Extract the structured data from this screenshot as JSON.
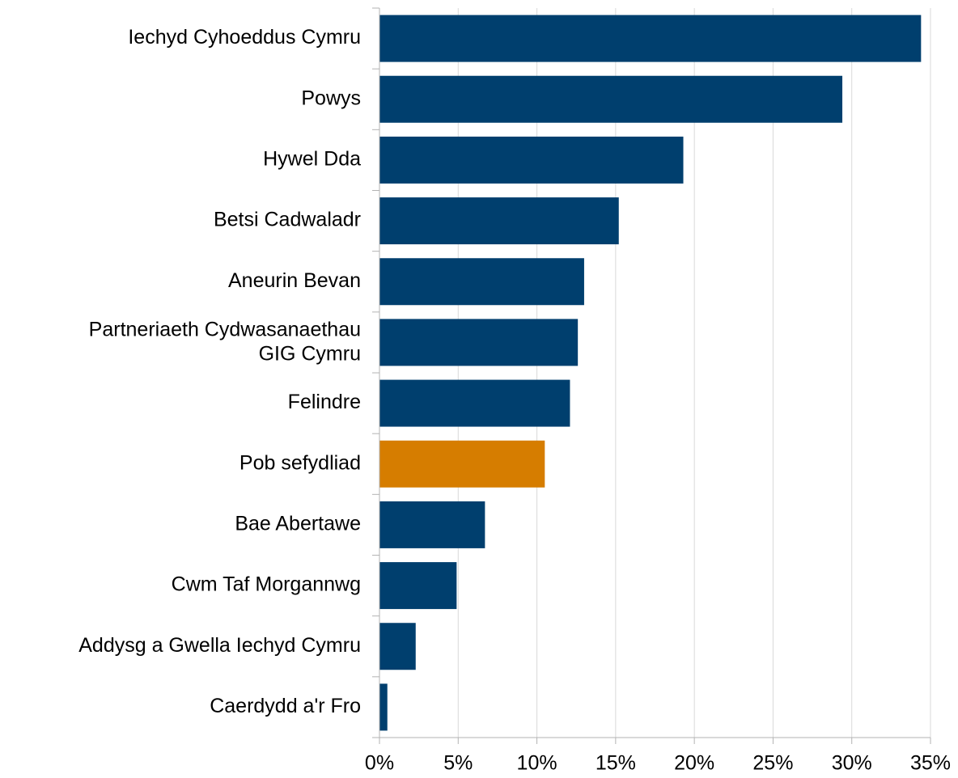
{
  "chart_data": {
    "type": "barh",
    "categories": [
      "Iechyd Cyhoeddus Cymru",
      "Powys",
      "Hywel Dda",
      "Betsi Cadwaladr",
      "Aneurin Bevan",
      "Partneriaeth Cydwasanaethau\nGIG Cymru",
      "Felindre",
      "Pob sefydliad",
      "Bae Abertawe",
      "Cwm Taf Morgannwg",
      "Addysg a Gwella Iechyd Cymru",
      "Caerdydd a'r Fro"
    ],
    "values": [
      34.4,
      29.4,
      19.3,
      15.2,
      13.0,
      12.6,
      12.1,
      10.5,
      6.7,
      4.9,
      2.3,
      0.5
    ],
    "colors": [
      "#003f6e",
      "#003f6e",
      "#003f6e",
      "#003f6e",
      "#003f6e",
      "#003f6e",
      "#003f6e",
      "#d67d00",
      "#003f6e",
      "#003f6e",
      "#003f6e",
      "#003f6e"
    ],
    "xlim": [
      0,
      35
    ],
    "xticks": [
      {
        "value": 0,
        "label": "0%"
      },
      {
        "value": 5,
        "label": "5%"
      },
      {
        "value": 10,
        "label": "10%"
      },
      {
        "value": 15,
        "label": "15%"
      },
      {
        "value": 20,
        "label": "20%"
      },
      {
        "value": 25,
        "label": "25%"
      },
      {
        "value": 30,
        "label": "30%"
      },
      {
        "value": 35,
        "label": "35%"
      }
    ],
    "grid": true
  }
}
